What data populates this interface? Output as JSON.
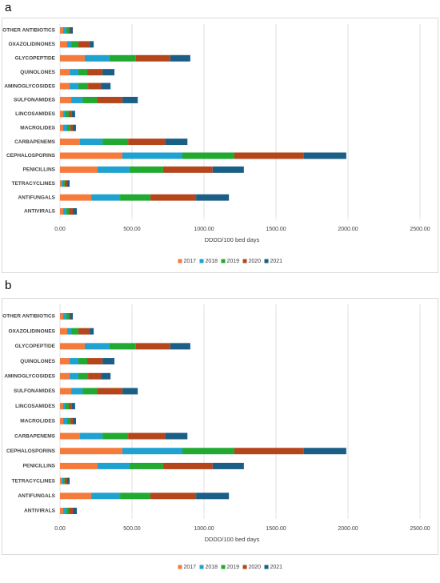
{
  "chart_data": [
    {
      "type": "stacked_bar_horizontal",
      "title": "a",
      "x_label": "DDDD/100 bed days",
      "categories": [
        "OTHER ANTIBIOTICS",
        "OXAZOLIDINONES",
        "GLYCOPEPTIDE",
        "QUINOLONES",
        "AMINOGLYCOSIDES",
        "SULFONAMIDES",
        "LINCOSAMIDES",
        "MACROLIDES",
        "CARBAPENEMS",
        "CEPHALOSPORINS",
        "PENICILLINS",
        "TETRACYCLINES",
        "ANTIFUNGALS",
        "ANTIVIRALS"
      ],
      "series": [
        {
          "name": "2017",
          "color": "#f47b3b",
          "values": [
            22,
            50,
            172,
            67,
            67,
            78,
            22,
            22,
            139,
            433,
            261,
            11,
            217,
            22
          ]
        },
        {
          "name": "2018",
          "color": "#1fa2d0",
          "values": [
            22,
            28,
            172,
            61,
            61,
            78,
            17,
            28,
            156,
            417,
            222,
            11,
            200,
            22
          ]
        },
        {
          "name": "2019",
          "color": "#22a932",
          "values": [
            17,
            50,
            183,
            61,
            67,
            100,
            22,
            22,
            178,
            361,
            233,
            11,
            211,
            17
          ]
        },
        {
          "name": "2020",
          "color": "#b5461c",
          "values": [
            11,
            78,
            239,
            106,
            89,
            178,
            22,
            17,
            256,
            483,
            344,
            17,
            317,
            28
          ]
        },
        {
          "name": "2021",
          "color": "#1b5f86",
          "values": [
            17,
            28,
            139,
            83,
            67,
            106,
            22,
            22,
            156,
            294,
            217,
            17,
            228,
            28
          ]
        }
      ],
      "xlim": [
        0,
        2500
      ],
      "xticks": [
        {
          "value": 0,
          "label": "0.00"
        },
        {
          "value": 500,
          "label": "500.00"
        },
        {
          "value": 1000,
          "label": "1000.00"
        },
        {
          "value": 1500,
          "label": "1500.00"
        },
        {
          "value": 2000,
          "label": "2000.00"
        },
        {
          "value": 2500,
          "label": "2500.00"
        }
      ],
      "grid": true,
      "legend": "bottom"
    },
    {
      "type": "stacked_bar_horizontal",
      "title": "b",
      "x_label": "DDDD/100 bed days",
      "categories": [
        "OTHER ANTIBIOTICS",
        "OXAZOLIDINONES",
        "GLYCOPEPTIDE",
        "QUINOLONES",
        "AMINOGLYCOSIDES",
        "SULFONAMIDES",
        "LINCOSAMIDES",
        "MACROLIDES",
        "CARBAPENEMS",
        "CEPHALOSPORINS",
        "PENICILLINS",
        "TETRACYCLINES",
        "ANTIFUNGALS",
        "ANTIVIRALS"
      ],
      "series": [
        {
          "name": "2017",
          "color": "#f47b3b",
          "values": [
            22,
            50,
            172,
            67,
            67,
            78,
            22,
            22,
            139,
            433,
            261,
            11,
            217,
            22
          ]
        },
        {
          "name": "2018",
          "color": "#1fa2d0",
          "values": [
            22,
            28,
            172,
            61,
            61,
            78,
            17,
            28,
            156,
            417,
            222,
            11,
            200,
            22
          ]
        },
        {
          "name": "2019",
          "color": "#22a932",
          "values": [
            17,
            50,
            183,
            61,
            67,
            100,
            22,
            22,
            178,
            361,
            233,
            11,
            211,
            17
          ]
        },
        {
          "name": "2020",
          "color": "#b5461c",
          "values": [
            11,
            78,
            239,
            106,
            89,
            178,
            22,
            17,
            256,
            483,
            344,
            17,
            317,
            28
          ]
        },
        {
          "name": "2021",
          "color": "#1b5f86",
          "values": [
            17,
            28,
            139,
            83,
            67,
            106,
            22,
            22,
            156,
            294,
            217,
            17,
            228,
            28
          ]
        }
      ],
      "xlim": [
        0,
        2500
      ],
      "xticks": [
        {
          "value": 0,
          "label": "0.00"
        },
        {
          "value": 500,
          "label": "500.00"
        },
        {
          "value": 1000,
          "label": "1000.00"
        },
        {
          "value": 1500,
          "label": "1500.00"
        },
        {
          "value": 2000,
          "label": "2000.00"
        },
        {
          "value": 2500,
          "label": "2500.00"
        }
      ],
      "grid": true,
      "legend": "bottom"
    }
  ]
}
